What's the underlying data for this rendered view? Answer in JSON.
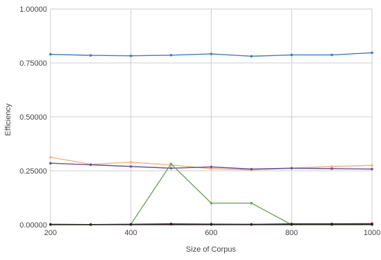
{
  "chart_data": {
    "type": "line",
    "title": "",
    "xlabel": "Size of Corpus",
    "ylabel": "Efficiency",
    "xlim": [
      200,
      1000
    ],
    "ylim": [
      0,
      1
    ],
    "x_ticks": [
      200,
      400,
      600,
      800,
      1000
    ],
    "y_ticks": [
      0,
      0.25,
      0.5,
      0.75,
      1
    ],
    "y_tick_labels": [
      "0.00000",
      "0.25000",
      "0.50000",
      "0.75000",
      "1.00000"
    ],
    "grid": true,
    "legend": "none",
    "x": [
      200,
      300,
      400,
      500,
      600,
      700,
      800,
      900,
      1000
    ],
    "series": [
      {
        "color": "#3c78d8",
        "values": [
          0.79,
          0.785,
          0.783,
          0.786,
          0.792,
          0.781,
          0.787,
          0.787,
          0.797
        ]
      },
      {
        "color": "#f6b26b",
        "values": [
          0.313,
          0.28,
          0.29,
          0.277,
          0.26,
          0.254,
          0.262,
          0.27,
          0.275
        ]
      },
      {
        "color": "#674ea7",
        "values": [
          0.285,
          0.278,
          0.27,
          0.262,
          0.268,
          0.258,
          0.262,
          0.26,
          0.258
        ]
      },
      {
        "color": "#6aa84f",
        "values": [
          0.0,
          0.0,
          0.002,
          0.282,
          0.1,
          0.1,
          0.0,
          0.0,
          0.0
        ]
      },
      {
        "color": "#cc0000",
        "values": [
          0.002,
          0.001,
          0.002,
          0.004,
          0.003,
          0.002,
          0.004,
          0.004,
          0.005
        ]
      },
      {
        "color": "#222222",
        "values": [
          0.001,
          0.001,
          0.001,
          0.002,
          0.001,
          0.001,
          0.002,
          0.002,
          0.002
        ]
      }
    ]
  }
}
